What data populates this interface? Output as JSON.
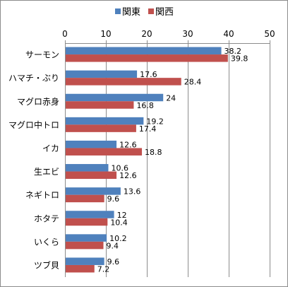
{
  "chart_data": {
    "type": "bar",
    "orientation": "horizontal",
    "categories": [
      "サーモン",
      "ハマチ・ぶり",
      "マグロ赤身",
      "マグロ中トロ",
      "イカ",
      "生エビ",
      "ネギトロ",
      "ホタテ",
      "いくら",
      "ツブ貝"
    ],
    "series": [
      {
        "name": "関東",
        "color": "#4f81bd",
        "values": [
          38.2,
          17.6,
          24,
          19.2,
          12.6,
          10.6,
          13.6,
          12,
          10.2,
          9.6
        ]
      },
      {
        "name": "関西",
        "color": "#c0504d",
        "values": [
          39.8,
          28.4,
          16.8,
          17.4,
          18.8,
          12.6,
          9.6,
          10.4,
          9.4,
          7.2
        ]
      }
    ],
    "xlim": [
      0,
      50
    ],
    "xticks": [
      0,
      10,
      20,
      30,
      40,
      50
    ],
    "x_axis_position": "top",
    "grid": true,
    "legend": "top",
    "data_labels": true
  }
}
